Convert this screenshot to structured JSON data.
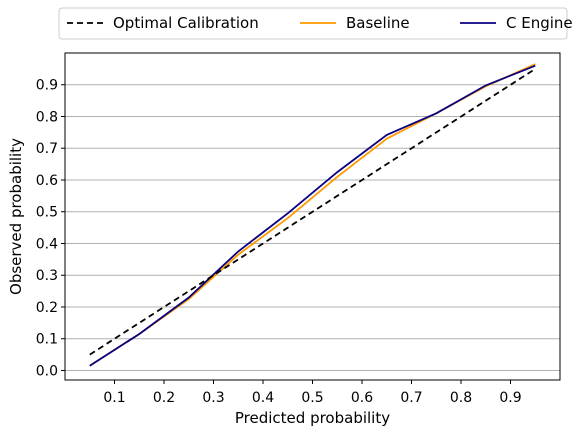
{
  "chart_data": {
    "type": "line",
    "xlabel": "Predicted probability",
    "ylabel": "Observed probability",
    "xlim": [
      0.0,
      1.0
    ],
    "ylim": [
      -0.03,
      1.0
    ],
    "x_ticks": [
      0.1,
      0.2,
      0.3,
      0.4,
      0.5,
      0.6,
      0.7,
      0.8,
      0.9
    ],
    "x_tick_labels": [
      "0.1",
      "0.2",
      "0.3",
      "0.4",
      "0.5",
      "0.6",
      "0.7",
      "0.8",
      "0.9"
    ],
    "y_ticks": [
      0.0,
      0.1,
      0.2,
      0.3,
      0.4,
      0.5,
      0.6,
      0.7,
      0.8,
      0.9
    ],
    "y_tick_labels": [
      "0.0",
      "0.1",
      "0.2",
      "0.3",
      "0.4",
      "0.5",
      "0.6",
      "0.7",
      "0.8",
      "0.9"
    ],
    "grid": "horizontal",
    "legend_placement": "top, above plot",
    "series": [
      {
        "name": "Optimal Calibration",
        "color": "#000000",
        "dashed": true,
        "x": [
          0.05,
          0.95
        ],
        "y": [
          0.05,
          0.95
        ]
      },
      {
        "name": "Baseline",
        "color": "#ff9900",
        "dashed": false,
        "x": [
          0.05,
          0.15,
          0.25,
          0.35,
          0.45,
          0.55,
          0.65,
          0.75,
          0.85,
          0.95
        ],
        "y": [
          0.015,
          0.115,
          0.225,
          0.365,
          0.48,
          0.61,
          0.73,
          0.81,
          0.895,
          0.965
        ]
      },
      {
        "name": "C Engine",
        "color": "#0a0080",
        "dashed": false,
        "x": [
          0.05,
          0.15,
          0.25,
          0.35,
          0.45,
          0.55,
          0.65,
          0.75,
          0.85,
          0.95
        ],
        "y": [
          0.015,
          0.115,
          0.23,
          0.375,
          0.495,
          0.625,
          0.742,
          0.81,
          0.898,
          0.96
        ]
      }
    ]
  }
}
